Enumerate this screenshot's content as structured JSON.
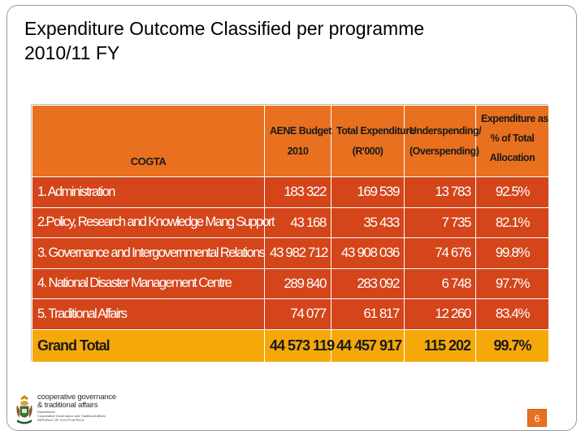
{
  "slide": {
    "title_line1": "Expenditure Outcome Classified per programme",
    "title_line2": "2010/11  FY",
    "page_number": "6"
  },
  "table": {
    "header": {
      "department": "COGTA",
      "budget": [
        "AENE Budget",
        "2010"
      ],
      "total_expenditure": [
        "Total Expenditure",
        "(R'000)"
      ],
      "underspending": [
        "Underspending/",
        "(Overspending)"
      ],
      "expenditure_pct": [
        "Expenditure as",
        "% of Total",
        "Allocation"
      ]
    },
    "rows": [
      {
        "programme": "1. Administration",
        "budget": "183 322",
        "expenditure": "169 539",
        "underspending": "13 783",
        "pct": "92.5%"
      },
      {
        "programme": "2.Policy, Research and Knowledge Mang Support",
        "budget": "43 168",
        "expenditure": "35 433",
        "underspending": "7 735",
        "pct": "82.1%"
      },
      {
        "programme": "3. Governance and Intergovernmental Relations",
        "budget": "43 982 712",
        "expenditure": "43 908 036",
        "underspending": "74 676",
        "pct": "99.8%"
      },
      {
        "programme": "4. National Disaster Management Centre",
        "budget": "289 840",
        "expenditure": "283 092",
        "underspending": "6 748",
        "pct": "97.7%"
      },
      {
        "programme": "5. Traditional Affairs",
        "budget": "74 077",
        "expenditure": "61 817",
        "underspending": "12 260",
        "pct": "83.4%"
      }
    ],
    "total": {
      "label": "Grand Total",
      "budget": "44 573 119",
      "expenditure": "44 457 917",
      "underspending": "115 202",
      "pct": "99.7%"
    }
  },
  "logo": {
    "line1": "cooperative governance",
    "line2": "& traditional affairs",
    "small1": "Department:",
    "small2": "Cooperative Governance and Traditional Affairs",
    "small3": "REPUBLIC OF SOUTH AFRICA"
  },
  "colors": {
    "header_orange": "#e8701f",
    "row_red": "#d4451a",
    "total_yellow": "#f5a80a"
  }
}
